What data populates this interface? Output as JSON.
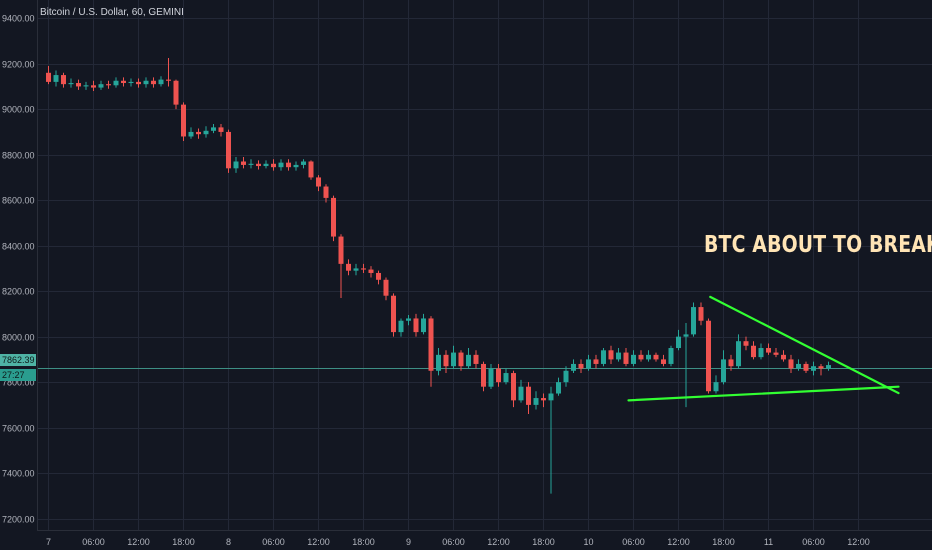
{
  "header": {
    "title": "Bitcoin / U.S. Dollar, 60, GEMINI"
  },
  "price_tags": {
    "current": "7862.39",
    "timer": "27:27"
  },
  "annotation": {
    "text": "BTC ABOUT TO BREAK"
  },
  "colors": {
    "background": "#131722",
    "grid": "#232837",
    "up": "#26a69a",
    "down": "#ef5350",
    "trendline": "#32ff32",
    "axis_text": "#b2b5be",
    "annotation": "#ffe4b5"
  },
  "chart_data": {
    "type": "candlestick",
    "title": "Bitcoin / U.S. Dollar, 60, GEMINI",
    "ylim": [
      7150,
      9480
    ],
    "y_ticks": [
      7200,
      7400,
      7600,
      7800,
      8000,
      8200,
      8400,
      8600,
      8800,
      9000,
      9200,
      9400
    ],
    "y_tick_labels": [
      "7200.00",
      "7400.00",
      "7600.00",
      "7800.00",
      "8000.00",
      "8200.00",
      "8400.00",
      "8600.00",
      "8800.00",
      "9000.00",
      "9200.00",
      "9400.00"
    ],
    "x_ticks": [
      {
        "label": "7",
        "hour": 0
      },
      {
        "label": "06:00",
        "hour": 6
      },
      {
        "label": "12:00",
        "hour": 12
      },
      {
        "label": "18:00",
        "hour": 18
      },
      {
        "label": "8",
        "hour": 24
      },
      {
        "label": "06:00",
        "hour": 30
      },
      {
        "label": "12:00",
        "hour": 36
      },
      {
        "label": "18:00",
        "hour": 42
      },
      {
        "label": "9",
        "hour": 48
      },
      {
        "label": "06:00",
        "hour": 54
      },
      {
        "label": "12:00",
        "hour": 60
      },
      {
        "label": "18:00",
        "hour": 66
      },
      {
        "label": "10",
        "hour": 72
      },
      {
        "label": "06:00",
        "hour": 78
      },
      {
        "label": "12:00",
        "hour": 84
      },
      {
        "label": "18:00",
        "hour": 90
      },
      {
        "label": "11",
        "hour": 96
      },
      {
        "label": "06:00",
        "hour": 102
      },
      {
        "label": "12:00",
        "hour": 108
      }
    ],
    "current_price": 7862.39,
    "candles": [
      [
        9160,
        9120,
        9190,
        9110
      ],
      [
        9120,
        9150,
        9170,
        9100
      ],
      [
        9150,
        9110,
        9160,
        9095
      ],
      [
        9110,
        9115,
        9135,
        9095
      ],
      [
        9115,
        9100,
        9130,
        9085
      ],
      [
        9100,
        9105,
        9120,
        9085
      ],
      [
        9105,
        9095,
        9125,
        9080
      ],
      [
        9095,
        9110,
        9125,
        9085
      ],
      [
        9110,
        9105,
        9125,
        9090
      ],
      [
        9105,
        9125,
        9140,
        9095
      ],
      [
        9125,
        9115,
        9140,
        9100
      ],
      [
        9115,
        9120,
        9135,
        9100
      ],
      [
        9120,
        9110,
        9135,
        9095
      ],
      [
        9110,
        9125,
        9140,
        9095
      ],
      [
        9125,
        9110,
        9140,
        9095
      ],
      [
        9110,
        9130,
        9145,
        9100
      ],
      [
        9130,
        9125,
        9225,
        9100
      ],
      [
        9125,
        9020,
        9130,
        9000
      ],
      [
        9020,
        8880,
        9030,
        8860
      ],
      [
        8880,
        8900,
        8920,
        8870
      ],
      [
        8900,
        8890,
        8915,
        8870
      ],
      [
        8890,
        8905,
        8925,
        8875
      ],
      [
        8905,
        8920,
        8935,
        8895
      ],
      [
        8920,
        8900,
        8935,
        8880
      ],
      [
        8900,
        8740,
        8910,
        8720
      ],
      [
        8740,
        8770,
        8790,
        8720
      ],
      [
        8770,
        8755,
        8790,
        8740
      ],
      [
        8755,
        8760,
        8780,
        8740
      ],
      [
        8760,
        8750,
        8775,
        8735
      ],
      [
        8750,
        8760,
        8775,
        8740
      ],
      [
        8760,
        8745,
        8780,
        8730
      ],
      [
        8745,
        8765,
        8780,
        8730
      ],
      [
        8765,
        8745,
        8780,
        8730
      ],
      [
        8745,
        8755,
        8770,
        8730
      ],
      [
        8755,
        8770,
        8780,
        8740
      ],
      [
        8770,
        8700,
        8775,
        8690
      ],
      [
        8700,
        8660,
        8710,
        8640
      ],
      [
        8660,
        8610,
        8670,
        8590
      ],
      [
        8610,
        8440,
        8620,
        8420
      ],
      [
        8440,
        8320,
        8450,
        8170
      ],
      [
        8320,
        8290,
        8340,
        8270
      ],
      [
        8290,
        8300,
        8320,
        8270
      ],
      [
        8300,
        8295,
        8320,
        8280
      ],
      [
        8295,
        8280,
        8310,
        8260
      ],
      [
        8280,
        8250,
        8290,
        8230
      ],
      [
        8250,
        8180,
        8260,
        8160
      ],
      [
        8180,
        8020,
        8190,
        8000
      ],
      [
        8020,
        8070,
        8080,
        8000
      ],
      [
        8070,
        8080,
        8095,
        8050
      ],
      [
        8080,
        8020,
        8100,
        8000
      ],
      [
        8020,
        8080,
        8100,
        8010
      ],
      [
        8080,
        7850,
        8090,
        7780
      ],
      [
        7850,
        7920,
        7950,
        7830
      ],
      [
        7920,
        7870,
        7940,
        7840
      ],
      [
        7870,
        7930,
        7960,
        7860
      ],
      [
        7930,
        7870,
        7940,
        7850
      ],
      [
        7870,
        7920,
        7950,
        7860
      ],
      [
        7920,
        7880,
        7940,
        7860
      ],
      [
        7880,
        7780,
        7890,
        7760
      ],
      [
        7780,
        7860,
        7880,
        7770
      ],
      [
        7860,
        7800,
        7880,
        7780
      ],
      [
        7800,
        7840,
        7860,
        7790
      ],
      [
        7840,
        7720,
        7850,
        7690
      ],
      [
        7720,
        7780,
        7810,
        7710
      ],
      [
        7780,
        7700,
        7800,
        7660
      ],
      [
        7700,
        7730,
        7760,
        7680
      ],
      [
        7730,
        7720,
        7750,
        7690
      ],
      [
        7720,
        7750,
        7780,
        7310
      ],
      [
        7750,
        7800,
        7820,
        7740
      ],
      [
        7800,
        7850,
        7870,
        7780
      ],
      [
        7850,
        7880,
        7900,
        7840
      ],
      [
        7880,
        7860,
        7900,
        7840
      ],
      [
        7860,
        7900,
        7920,
        7850
      ],
      [
        7900,
        7880,
        7920,
        7860
      ],
      [
        7880,
        7940,
        7950,
        7870
      ],
      [
        7940,
        7900,
        7960,
        7880
      ],
      [
        7900,
        7930,
        7950,
        7890
      ],
      [
        7930,
        7880,
        7950,
        7870
      ],
      [
        7880,
        7920,
        7940,
        7870
      ],
      [
        7920,
        7900,
        7940,
        7890
      ],
      [
        7900,
        7920,
        7940,
        7890
      ],
      [
        7920,
        7900,
        7930,
        7890
      ],
      [
        7900,
        7880,
        7920,
        7870
      ],
      [
        7880,
        7950,
        7960,
        7870
      ],
      [
        7950,
        8000,
        8030,
        7940
      ],
      [
        8000,
        8010,
        8060,
        7690
      ],
      [
        8010,
        8130,
        8150,
        8000
      ],
      [
        8130,
        8070,
        8150,
        8050
      ],
      [
        8070,
        7760,
        8080,
        7750
      ],
      [
        7760,
        7800,
        7830,
        7750
      ],
      [
        7800,
        7900,
        7940,
        7790
      ],
      [
        7900,
        7870,
        7920,
        7850
      ],
      [
        7870,
        7980,
        8010,
        7860
      ],
      [
        7980,
        7960,
        8000,
        7940
      ],
      [
        7960,
        7910,
        7980,
        7900
      ],
      [
        7910,
        7950,
        7970,
        7900
      ],
      [
        7950,
        7930,
        7970,
        7920
      ],
      [
        7930,
        7920,
        7950,
        7910
      ],
      [
        7920,
        7900,
        7940,
        7890
      ],
      [
        7900,
        7860,
        7920,
        7840
      ],
      [
        7860,
        7880,
        7900,
        7850
      ],
      [
        7880,
        7850,
        7890,
        7840
      ],
      [
        7850,
        7870,
        7890,
        7830
      ],
      [
        7870,
        7860,
        7880,
        7830
      ],
      [
        7860,
        7875,
        7890,
        7850
      ]
    ],
    "trendlines": [
      {
        "from": [
          88.3,
          8175
        ],
        "to": [
          113.4,
          7752
        ]
      },
      {
        "from": [
          77.4,
          7720
        ],
        "to": [
          113.4,
          7780
        ]
      }
    ]
  }
}
